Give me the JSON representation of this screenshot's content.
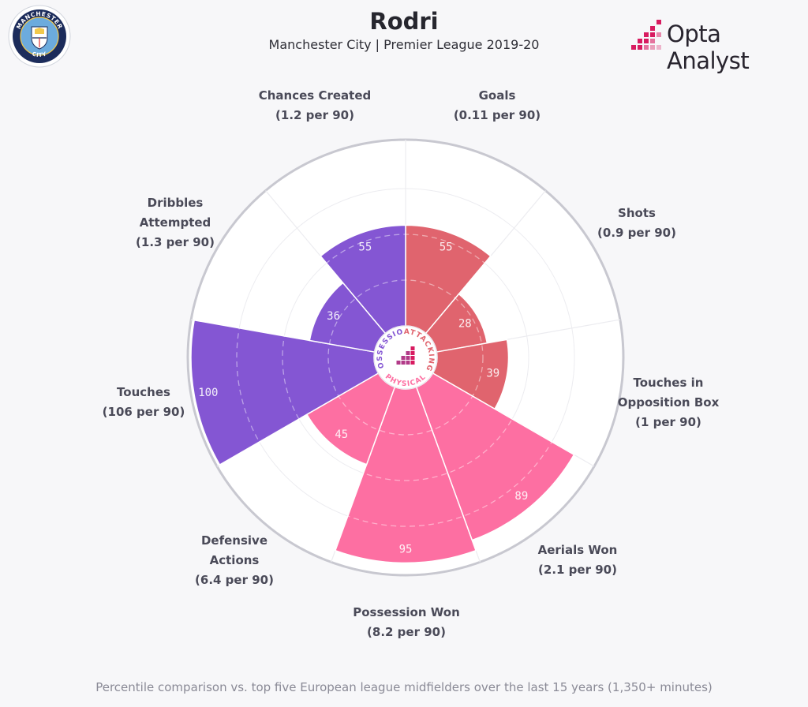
{
  "header": {
    "title": "Rodri",
    "subtitle": "Manchester City | Premier League 2019-20",
    "brand": "Opta Analyst"
  },
  "crest": {
    "top_text": "MANCHESTER",
    "bottom_text": "CITY",
    "colors": {
      "navy": "#1c2c5b",
      "sky": "#6cabdd",
      "gold": "#f2c94c"
    }
  },
  "footer": {
    "note": "Percentile comparison vs. top five European league midfielders over the last 15 years (1,350+ minutes)"
  },
  "colors": {
    "attacking": "#e0646e",
    "physical": "#fd6fa2",
    "possession": "#8456d3",
    "background": "#f7f7f9",
    "opta_accent": "#d81b60"
  },
  "center_labels": {
    "attacking": "ATTACKING",
    "physical": "PHYSICAL",
    "possession": "POSSESSION"
  },
  "chart_data": {
    "type": "polar-bar",
    "scale": [
      0,
      100
    ],
    "categories": [
      {
        "name": "Goals",
        "lines": [
          "Goals",
          "(0.11 per 90)"
        ],
        "percentile": 55,
        "group": "attacking"
      },
      {
        "name": "Shots",
        "lines": [
          "Shots",
          "(0.9 per 90)"
        ],
        "percentile": 28,
        "group": "attacking"
      },
      {
        "name": "Touches in Opposition Box",
        "lines": [
          "Touches in",
          "Opposition Box",
          "(1 per 90)"
        ],
        "percentile": 39,
        "group": "attacking"
      },
      {
        "name": "Aerials Won",
        "lines": [
          "Aerials Won",
          "(2.1 per 90)"
        ],
        "percentile": 89,
        "group": "physical"
      },
      {
        "name": "Possession Won",
        "lines": [
          "Possession Won",
          "(8.2 per 90)"
        ],
        "percentile": 95,
        "group": "physical"
      },
      {
        "name": "Defensive Actions",
        "lines": [
          "Defensive",
          "Actions",
          "(6.4 per 90)"
        ],
        "percentile": 45,
        "group": "physical"
      },
      {
        "name": "Touches",
        "lines": [
          "Touches",
          "(106 per 90)"
        ],
        "percentile": 100,
        "group": "possession"
      },
      {
        "name": "Dribbles Attempted",
        "lines": [
          "Dribbles",
          "Attempted",
          "(1.3 per 90)"
        ],
        "percentile": 36,
        "group": "possession"
      },
      {
        "name": "Chances Created",
        "lines": [
          "Chances Created",
          "(1.2 per 90)"
        ],
        "percentile": 55,
        "group": "possession"
      }
    ]
  }
}
